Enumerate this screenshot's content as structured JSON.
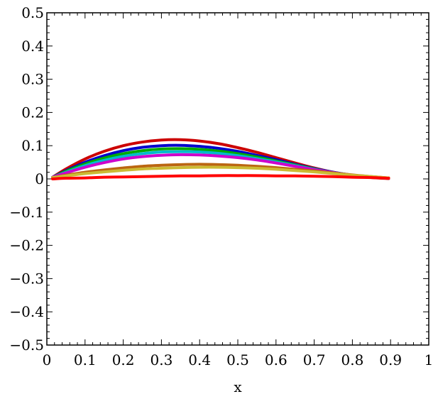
{
  "chart_data": {
    "type": "line",
    "xlabel": "x",
    "ylabel": "",
    "xlim": [
      0,
      1
    ],
    "ylim": [
      -0.5,
      0.5
    ],
    "x_ticks": [
      "0",
      "0.1",
      "0.2",
      "0.3",
      "0.4",
      "0.5",
      "0.6",
      "0.7",
      "0.8",
      "0.9",
      "1"
    ],
    "y_ticks": [
      "−0.5",
      "−0.4",
      "−0.3",
      "−0.2",
      "−0.1",
      "0",
      "0.1",
      "0.2",
      "0.3",
      "0.4",
      "0.5"
    ],
    "grid": false,
    "legend": "none",
    "x": [
      0.015,
      0.05,
      0.1,
      0.15,
      0.2,
      0.25,
      0.3,
      0.35,
      0.4,
      0.45,
      0.5,
      0.55,
      0.6,
      0.65,
      0.7,
      0.75,
      0.8,
      0.85,
      0.895
    ],
    "series": [
      {
        "color": "#cc0000",
        "values": [
          0.005,
          0.03,
          0.06,
          0.083,
          0.1,
          0.111,
          0.117,
          0.118,
          0.114,
          0.106,
          0.094,
          0.08,
          0.064,
          0.048,
          0.033,
          0.02,
          0.01,
          0.004,
          0.001
        ]
      },
      {
        "color": "#0000cc",
        "values": [
          0.005,
          0.025,
          0.05,
          0.07,
          0.085,
          0.095,
          0.1,
          0.101,
          0.098,
          0.092,
          0.083,
          0.071,
          0.058,
          0.044,
          0.031,
          0.02,
          0.011,
          0.005,
          0.002
        ]
      },
      {
        "color": "#00aa00",
        "values": [
          0.005,
          0.023,
          0.045,
          0.063,
          0.076,
          0.085,
          0.09,
          0.091,
          0.089,
          0.084,
          0.076,
          0.066,
          0.054,
          0.042,
          0.03,
          0.019,
          0.011,
          0.005,
          0.002
        ]
      },
      {
        "color": "#00bbcc",
        "values": [
          0.005,
          0.02,
          0.04,
          0.056,
          0.068,
          0.076,
          0.081,
          0.082,
          0.081,
          0.077,
          0.07,
          0.061,
          0.051,
          0.04,
          0.029,
          0.019,
          0.011,
          0.006,
          0.002
        ]
      },
      {
        "color": "#cc00cc",
        "values": [
          0.005,
          0.018,
          0.035,
          0.049,
          0.06,
          0.067,
          0.071,
          0.073,
          0.072,
          0.069,
          0.064,
          0.057,
          0.048,
          0.038,
          0.028,
          0.019,
          0.011,
          0.006,
          0.002
        ]
      },
      {
        "color": "#bb6611",
        "values": [
          0.004,
          0.011,
          0.02,
          0.027,
          0.033,
          0.038,
          0.041,
          0.043,
          0.044,
          0.043,
          0.041,
          0.038,
          0.034,
          0.029,
          0.024,
          0.018,
          0.012,
          0.007,
          0.003
        ]
      },
      {
        "color": "#ccbb33",
        "values": [
          0.004,
          0.009,
          0.016,
          0.021,
          0.026,
          0.03,
          0.032,
          0.034,
          0.035,
          0.035,
          0.034,
          0.032,
          0.029,
          0.025,
          0.021,
          0.016,
          0.011,
          0.007,
          0.003
        ]
      },
      {
        "color": "#ff0000",
        "values": [
          0.0,
          0.002,
          0.003,
          0.005,
          0.006,
          0.007,
          0.008,
          0.009,
          0.009,
          0.01,
          0.01,
          0.01,
          0.009,
          0.009,
          0.008,
          0.007,
          0.005,
          0.004,
          0.002
        ]
      }
    ]
  }
}
